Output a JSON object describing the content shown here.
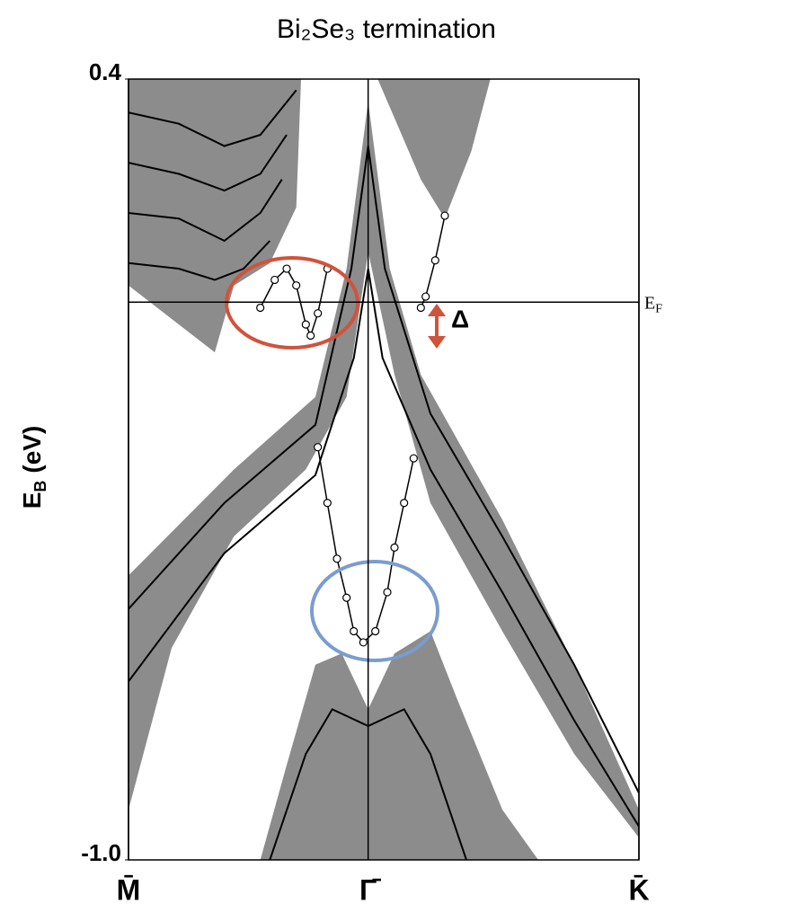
{
  "chart_data": {
    "type": "band_structure",
    "title": "Bi₂Se₃ termination",
    "y_label": {
      "text": "E",
      "subscript": "B",
      "unit": "(eV)"
    },
    "fermi_label": {
      "text": "E",
      "subscript": "F"
    },
    "gap_label": "Δ",
    "fermi_level": 0,
    "xlim": [
      -1,
      1.13
    ],
    "xticks": [
      {
        "value": -1,
        "label": "M̄"
      },
      {
        "value": 0,
        "label": "Γ̄"
      },
      {
        "value": 1.13,
        "label": "K̄"
      }
    ],
    "ylim": [
      -1.0,
      0.4
    ],
    "yticks": [
      {
        "value": 0.4,
        "label": "0.4"
      },
      {
        "value": -1.0,
        "label": "-1.0"
      }
    ],
    "series": [
      {
        "fill": true,
        "color": "#8c8c8c",
        "x": [
          -1,
          -0.28,
          -0.3,
          -0.41,
          -0.56,
          -0.64,
          -0.79,
          -1
        ],
        "values": [
          0.4,
          0.4,
          0.17,
          0.07,
          0.03,
          -0.09,
          -0.04,
          0.03
        ]
      },
      {
        "fill": true,
        "color": "#8c8c8c",
        "x": [
          0.04,
          0.51,
          0.43,
          0.32,
          0.22,
          0.11
        ],
        "values": [
          0.4,
          0.4,
          0.27,
          0.15,
          0.22,
          0.33
        ]
      },
      {
        "fill": true,
        "color": "#8c8c8c",
        "x": [
          -1,
          -0.56,
          -0.22,
          -0.09,
          0,
          0.09,
          0.22,
          0.56,
          0.86,
          1.13,
          1.13,
          0.86,
          0.56,
          0.26,
          0.11,
          0,
          -0.09,
          -0.26,
          -0.56,
          -0.82,
          -1
        ],
        "values": [
          -0.49,
          -0.3,
          -0.17,
          0.06,
          0.36,
          0.06,
          -0.13,
          -0.39,
          -0.65,
          -0.91,
          -0.96,
          -0.81,
          -0.59,
          -0.36,
          -0.13,
          0.09,
          -0.17,
          -0.3,
          -0.42,
          -0.62,
          -0.91
        ]
      },
      {
        "fill": true,
        "color": "#8c8c8c",
        "x": [
          -0.45,
          -0.34,
          -0.22,
          -0.11,
          0,
          0.11,
          0.26,
          0.37,
          0.56,
          0.71
        ],
        "values": [
          -1.0,
          -0.83,
          -0.65,
          -0.63,
          -0.73,
          -0.63,
          -0.59,
          -0.71,
          -0.91,
          -1.0
        ]
      },
      {
        "color": "#000000",
        "x": [
          -1,
          -0.79,
          -0.6,
          -0.45,
          -0.3
        ],
        "values": [
          0.34,
          0.32,
          0.28,
          0.3,
          0.38
        ]
      },
      {
        "color": "#000000",
        "x": [
          -1,
          -0.79,
          -0.6,
          -0.45,
          -0.34
        ],
        "values": [
          0.25,
          0.23,
          0.2,
          0.23,
          0.3
        ]
      },
      {
        "color": "#000000",
        "x": [
          -1,
          -0.79,
          -0.6,
          -0.45,
          -0.36
        ],
        "values": [
          0.16,
          0.15,
          0.11,
          0.16,
          0.22
        ]
      },
      {
        "color": "#000000",
        "x": [
          -1,
          -0.79,
          -0.64,
          -0.52,
          -0.41
        ],
        "values": [
          0.07,
          0.06,
          0.04,
          0.06,
          0.11
        ]
      },
      {
        "color": "#000000",
        "x": [
          -1,
          -0.6,
          -0.22,
          -0.07,
          0,
          0.07,
          0.26,
          0.56,
          0.86,
          1.13
        ],
        "values": [
          -0.55,
          -0.36,
          -0.22,
          0.06,
          0.28,
          0.06,
          -0.2,
          -0.42,
          -0.65,
          -0.88
        ]
      },
      {
        "color": "#000000",
        "x": [
          -1,
          -0.6,
          -0.22,
          -0.06,
          0,
          0.06,
          0.26,
          0.56,
          0.86,
          1.13
        ],
        "values": [
          -0.68,
          -0.45,
          -0.31,
          -0.1,
          0.06,
          -0.1,
          -0.3,
          -0.52,
          -0.75,
          -0.94
        ]
      },
      {
        "color": "#000000",
        "x": [
          -0.41,
          -0.26,
          -0.15,
          0,
          0.15,
          0.26,
          0.41
        ],
        "values": [
          -1.0,
          -0.81,
          -0.73,
          -0.76,
          -0.73,
          -0.81,
          -1.0
        ]
      },
      {
        "color": "#000000",
        "marker": "circle",
        "x": [
          -0.21,
          -0.17,
          -0.13,
          -0.09,
          -0.06,
          -0.02,
          0.03,
          0.08,
          0.11,
          0.15,
          0.19
        ],
        "values": [
          -0.26,
          -0.36,
          -0.46,
          -0.53,
          -0.59,
          -0.61,
          -0.59,
          -0.52,
          -0.44,
          -0.36,
          -0.28
        ]
      },
      {
        "color": "#000000",
        "marker": "circle",
        "x": [
          -0.45,
          -0.39,
          -0.34,
          -0.3,
          -0.26,
          -0.24,
          -0.21,
          -0.17
        ],
        "values": [
          -0.01,
          0.04,
          0.06,
          0.03,
          -0.04,
          -0.06,
          -0.02,
          0.06
        ]
      },
      {
        "color": "#000000",
        "marker": "circle",
        "x": [
          0.32,
          0.28,
          0.24,
          0.22
        ],
        "values": [
          0.155,
          0.075,
          0.01,
          -0.01
        ]
      }
    ]
  }
}
